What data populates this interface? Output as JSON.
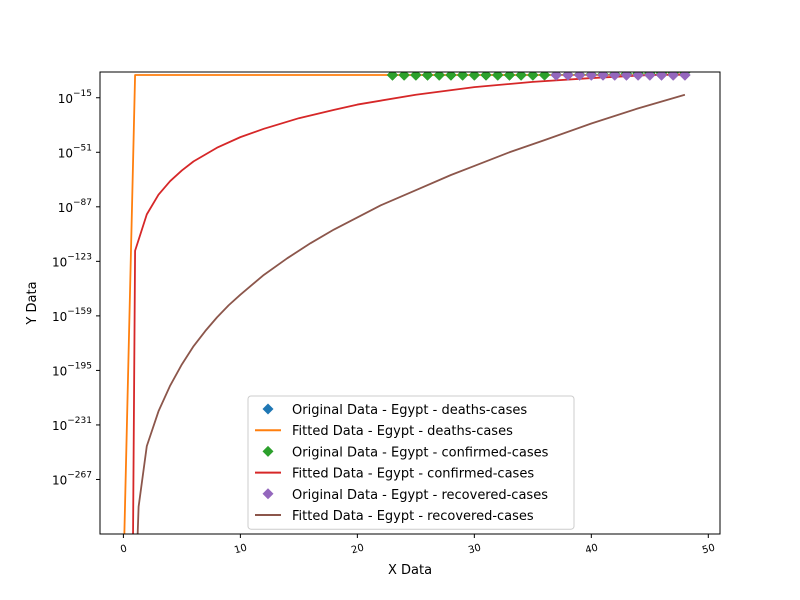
{
  "chart_data": {
    "type": "line",
    "title": "",
    "xlabel": "X Data",
    "ylabel": "Y Data",
    "xlim": [
      -2,
      51
    ],
    "ylim_exponent": [
      -303,
      2
    ],
    "y_scale": "log",
    "x_ticks": [
      0,
      10,
      20,
      30,
      40,
      50
    ],
    "x_tick_labels": [
      "0",
      "10",
      "20",
      "30",
      "40",
      "50"
    ],
    "y_tick_exponents": [
      -15,
      -51,
      -87,
      -123,
      -159,
      -195,
      -231,
      -267
    ],
    "y_tick_labels": [
      "10^-15",
      "10^-51",
      "10^-87",
      "10^-123",
      "10^-159",
      "10^-195",
      "10^-231",
      "10^-267"
    ],
    "grid": false,
    "legend_position": "lower center",
    "series": [
      {
        "name": "Original Data - Egypt - deaths-cases",
        "kind": "markers",
        "marker": "diamond",
        "color": "#1f77b4",
        "x": [],
        "log10_y": []
      },
      {
        "name": "Fitted Data - Egypt - deaths-cases",
        "kind": "line",
        "color": "#ff7f0e",
        "x": [
          0,
          1,
          10,
          20,
          30,
          40,
          48
        ],
        "log10_y": [
          -330,
          0,
          0,
          0,
          0,
          0,
          0
        ]
      },
      {
        "name": "Original Data - Egypt - confirmed-cases",
        "kind": "markers",
        "marker": "diamond",
        "color": "#2ca02c",
        "x": [
          23,
          24,
          25,
          26,
          27,
          28,
          29,
          30,
          31,
          32,
          33,
          34,
          35,
          36,
          37,
          38,
          39,
          40,
          41,
          42,
          43,
          44,
          45,
          46,
          47,
          48
        ],
        "log10_y": [
          0.0,
          0.0,
          0.0,
          0.0,
          0.0,
          0.0,
          0.0,
          0.0,
          0.0,
          0.0,
          0.0,
          0.0,
          0.0,
          0.1,
          0.2,
          0.2,
          0.3,
          0.4,
          0.5,
          0.6,
          0.8,
          1.0,
          1.2,
          1.4,
          1.6,
          1.8
        ]
      },
      {
        "name": "Fitted Data - Egypt - confirmed-cases",
        "kind": "line",
        "color": "#d62728",
        "x": [
          0.8,
          1,
          2,
          3,
          4,
          5,
          6,
          8,
          10,
          12,
          15,
          18,
          20,
          25,
          30,
          35,
          40,
          45,
          48
        ],
        "log10_y": [
          -330,
          -116,
          -92,
          -79,
          -70,
          -63,
          -57,
          -48,
          -41,
          -35.5,
          -28.5,
          -23,
          -19.5,
          -13,
          -8,
          -4.5,
          -2,
          0,
          0.5
        ]
      },
      {
        "name": "Original Data - Egypt - recovered-cases",
        "kind": "markers",
        "marker": "diamond",
        "color": "#9467bd",
        "x": [
          37,
          38,
          39,
          40,
          41,
          42,
          43,
          44,
          45,
          46,
          47,
          48
        ],
        "log10_y": [
          0.0,
          0.0,
          0.0,
          0.0,
          0.0,
          0.0,
          0.0,
          0.0,
          0.0,
          0.0,
          0.0,
          0.0
        ]
      },
      {
        "name": "Fitted Data - Egypt - recovered-cases",
        "kind": "line",
        "color": "#8c564b",
        "x": [
          1.1,
          1.3,
          2,
          3,
          4,
          5,
          6,
          7,
          8,
          9,
          10,
          12,
          14,
          16,
          18,
          20,
          22,
          25,
          28,
          30,
          33,
          36,
          40,
          44,
          48
        ],
        "log10_y": [
          -330,
          -285,
          -245,
          -222,
          -205,
          -191,
          -179,
          -169,
          -160,
          -152,
          -145,
          -132,
          -121,
          -111,
          -102,
          -94,
          -86,
          -76,
          -66,
          -60,
          -51,
          -43,
          -32,
          -22,
          -13
        ]
      }
    ]
  }
}
